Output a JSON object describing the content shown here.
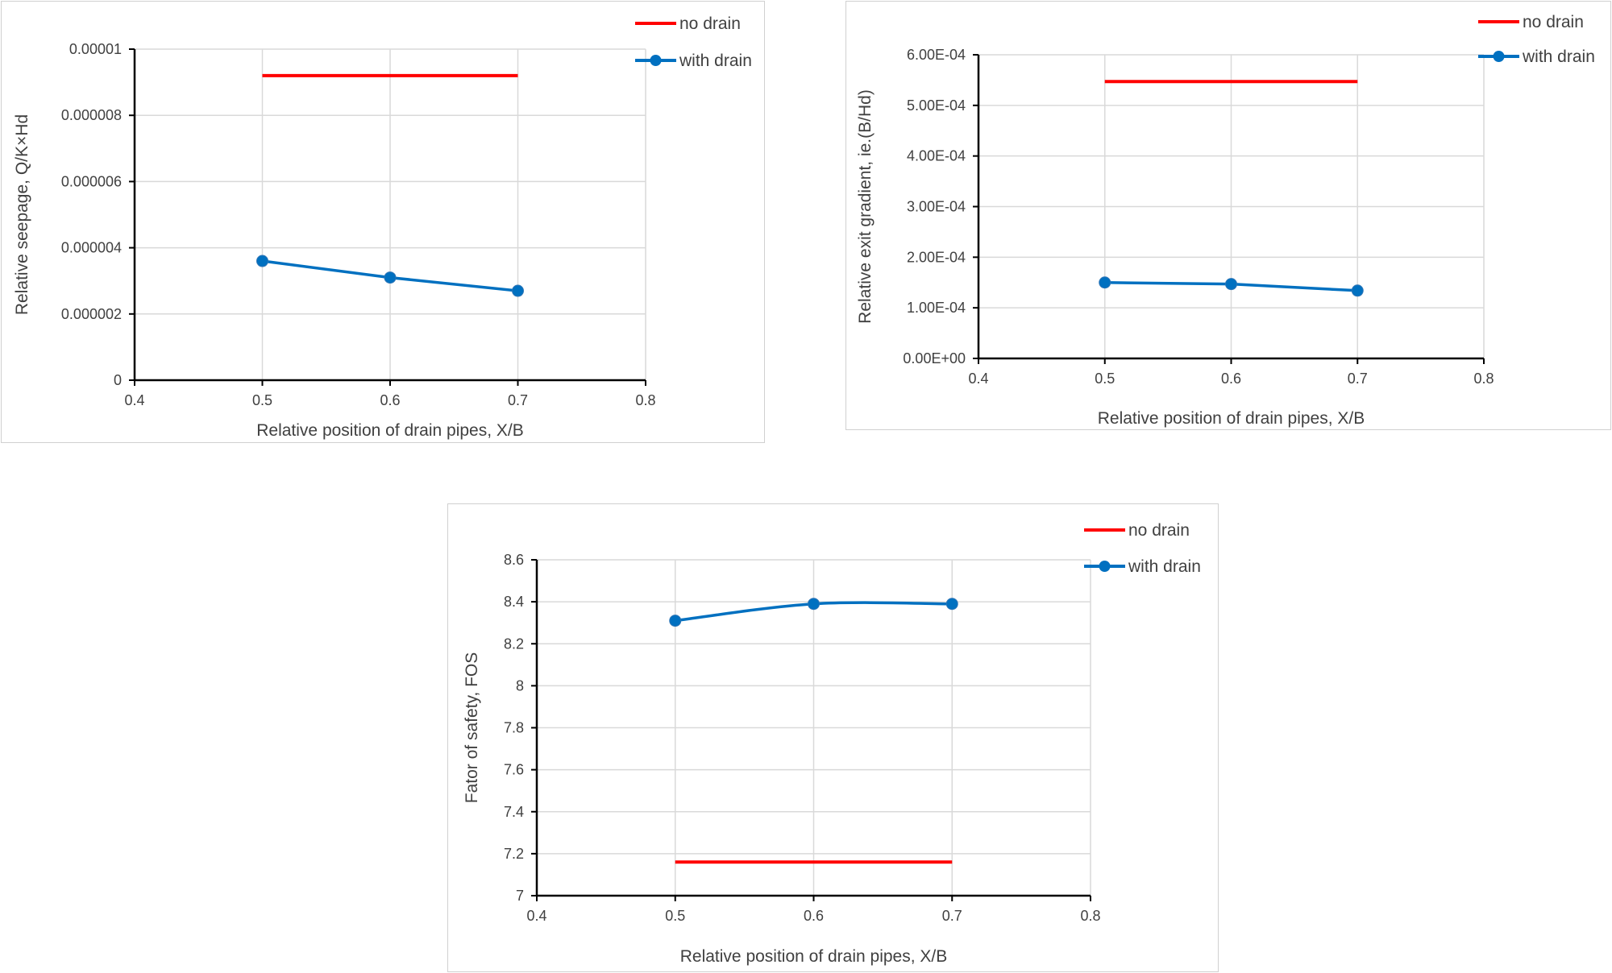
{
  "chart_data": [
    {
      "type": "line",
      "title": "",
      "xlabel": "Relative position of drain pipes, X/B",
      "ylabel": "Relative seepage, Q/K×Hd",
      "xlim": [
        0.4,
        0.8
      ],
      "ylim": [
        0,
        1e-05
      ],
      "x_ticks": [
        0.4,
        0.5,
        0.6,
        0.7,
        0.8
      ],
      "x_tick_labels": [
        "0.4",
        "0.5",
        "0.6",
        "0.7",
        "0.8"
      ],
      "y_ticks": [
        0,
        2e-06,
        4e-06,
        6e-06,
        8e-06,
        1e-05
      ],
      "y_tick_labels": [
        "0",
        "0.000002",
        "0.000004",
        "0.000006",
        "0.000008",
        "0.00001"
      ],
      "grid": true,
      "legend_position": "top-right",
      "series": [
        {
          "name": "no drain",
          "color": "#ff0000",
          "markers": false,
          "x": [
            0.5,
            0.6,
            0.7
          ],
          "values": [
            9.2e-06,
            9.2e-06,
            9.2e-06
          ]
        },
        {
          "name": "with drain",
          "color": "#0070c0",
          "markers": true,
          "x": [
            0.5,
            0.6,
            0.7
          ],
          "values": [
            3.6e-06,
            3.1e-06,
            2.7e-06
          ]
        }
      ]
    },
    {
      "type": "line",
      "title": "",
      "xlabel": "Relative position of drain pipes, X/B",
      "ylabel": "Relative exit gradient, ie.(B/Hd)",
      "xlim": [
        0.4,
        0.8
      ],
      "ylim": [
        0,
        0.0006
      ],
      "x_ticks": [
        0.4,
        0.5,
        0.6,
        0.7,
        0.8
      ],
      "x_tick_labels": [
        "0.4",
        "0.5",
        "0.6",
        "0.7",
        "0.8"
      ],
      "y_ticks": [
        0,
        0.0001,
        0.0002,
        0.0003,
        0.0004,
        0.0005,
        0.0006
      ],
      "y_tick_labels": [
        "0.00E+00",
        "1.00E-04",
        "2.00E-04",
        "3.00E-04",
        "4.00E-04",
        "5.00E-04",
        "6.00E-04"
      ],
      "grid": true,
      "legend_position": "top-right",
      "series": [
        {
          "name": "no drain",
          "color": "#ff0000",
          "markers": false,
          "x": [
            0.5,
            0.6,
            0.7
          ],
          "values": [
            0.000547,
            0.000547,
            0.000547
          ]
        },
        {
          "name": "with drain",
          "color": "#0070c0",
          "markers": true,
          "x": [
            0.5,
            0.6,
            0.7
          ],
          "values": [
            0.00015,
            0.000147,
            0.000134
          ]
        }
      ]
    },
    {
      "type": "line",
      "title": "",
      "xlabel": "Relative position of drain pipes, X/B",
      "ylabel": "Fator of safety, FOS",
      "xlim": [
        0.4,
        0.8
      ],
      "ylim": [
        7,
        8.6
      ],
      "x_ticks": [
        0.4,
        0.5,
        0.6,
        0.7,
        0.8
      ],
      "x_tick_labels": [
        "0.4",
        "0.5",
        "0.6",
        "0.7",
        "0.8"
      ],
      "y_ticks": [
        7,
        7.2,
        7.4,
        7.6,
        7.8,
        8,
        8.2,
        8.4,
        8.6
      ],
      "y_tick_labels": [
        "7",
        "7.2",
        "7.4",
        "7.6",
        "7.8",
        "8",
        "8.2",
        "8.4",
        "8.6"
      ],
      "grid": true,
      "legend_position": "top-right",
      "series": [
        {
          "name": "no drain",
          "color": "#ff0000",
          "markers": false,
          "x": [
            0.5,
            0.6,
            0.7
          ],
          "values": [
            7.16,
            7.16,
            7.16
          ]
        },
        {
          "name": "with drain",
          "color": "#0070c0",
          "markers": true,
          "x": [
            0.5,
            0.6,
            0.7
          ],
          "values": [
            8.31,
            8.39,
            8.39
          ]
        }
      ]
    }
  ]
}
